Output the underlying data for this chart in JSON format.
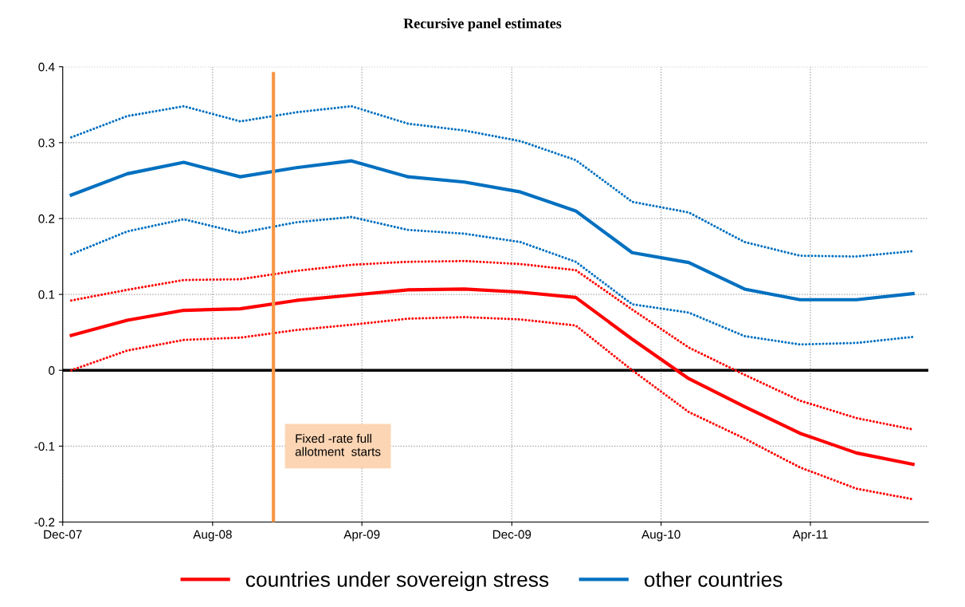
{
  "chart_data": {
    "type": "line",
    "title": "Recursive panel estimates",
    "x": [
      "2007-12-15",
      "2008-03-15",
      "2008-06-15",
      "2008-09-15",
      "2008-12-15",
      "2009-03-15",
      "2009-06-15",
      "2009-09-15",
      "2009-12-15",
      "2010-03-15",
      "2010-06-15",
      "2010-09-15",
      "2010-12-15",
      "2011-03-15",
      "2011-06-15",
      "2011-09-15"
    ],
    "series": [
      {
        "name": "countries under sovereign stress",
        "color": "#ff0000",
        "values": [
          0.046,
          0.066,
          0.079,
          0.081,
          0.092,
          0.099,
          0.106,
          0.107,
          0.103,
          0.096,
          0.041,
          -0.011,
          -0.048,
          -0.083,
          -0.109,
          -0.124
        ]
      },
      {
        "color": "#ff0000",
        "line_style": "dotted",
        "values": [
          0.092,
          0.106,
          0.119,
          0.12,
          0.131,
          0.139,
          0.143,
          0.144,
          0.14,
          0.132,
          0.08,
          0.03,
          -0.006,
          -0.04,
          -0.063,
          -0.078
        ]
      },
      {
        "color": "#ff0000",
        "line_style": "dotted",
        "values": [
          0.0,
          0.026,
          0.04,
          0.043,
          0.053,
          0.06,
          0.068,
          0.07,
          0.067,
          0.059,
          0.0,
          -0.055,
          -0.09,
          -0.128,
          -0.156,
          -0.17
        ]
      },
      {
        "name": "other countries",
        "color": "#0070c0",
        "values": [
          0.231,
          0.259,
          0.274,
          0.255,
          0.267,
          0.276,
          0.255,
          0.248,
          0.235,
          0.21,
          0.155,
          0.142,
          0.107,
          0.093,
          0.093,
          0.101
        ]
      },
      {
        "color": "#0070c0",
        "line_style": "dotted",
        "values": [
          0.307,
          0.335,
          0.348,
          0.328,
          0.34,
          0.348,
          0.325,
          0.316,
          0.302,
          0.277,
          0.222,
          0.208,
          0.169,
          0.151,
          0.15,
          0.157
        ]
      },
      {
        "color": "#0070c0",
        "line_style": "dotted",
        "values": [
          0.153,
          0.183,
          0.199,
          0.181,
          0.195,
          0.202,
          0.185,
          0.18,
          0.169,
          0.143,
          0.087,
          0.076,
          0.045,
          0.034,
          0.036,
          0.044
        ]
      }
    ],
    "xlim": [
      "2007-12-01",
      "2011-10-10"
    ],
    "xticks": [
      {
        "value": "2007-12-01",
        "label": "Dec-07"
      },
      {
        "value": "2008-08-01",
        "label": "Aug-08"
      },
      {
        "value": "2009-04-01",
        "label": "Apr-09"
      },
      {
        "value": "2009-12-01",
        "label": "Dec-09"
      },
      {
        "value": "2010-08-01",
        "label": "Aug-10"
      },
      {
        "value": "2011-04-01",
        "label": "Apr-11"
      }
    ],
    "ylim": [
      -0.2,
      0.4
    ],
    "yticks": [
      {
        "value": -0.2,
        "label": "-0.2"
      },
      {
        "value": -0.1,
        "label": "-0.1"
      },
      {
        "value": 0,
        "label": "0"
      },
      {
        "value": 0.1,
        "label": "0.1"
      },
      {
        "value": 0.2,
        "label": "0.2"
      },
      {
        "value": 0.3,
        "label": "0.3"
      },
      {
        "value": 0.4,
        "label": "0.4"
      }
    ],
    "ref_lines": [
      {
        "axis": "x",
        "value": "2008-11-08",
        "label": "Fixed -rate full\nallotment  starts",
        "color": "#f79646"
      },
      {
        "axis": "y",
        "value": 0,
        "color": "#000000"
      }
    ],
    "grid": true,
    "legend": "bottom",
    "marker": "none",
    "line_style": "solid"
  }
}
